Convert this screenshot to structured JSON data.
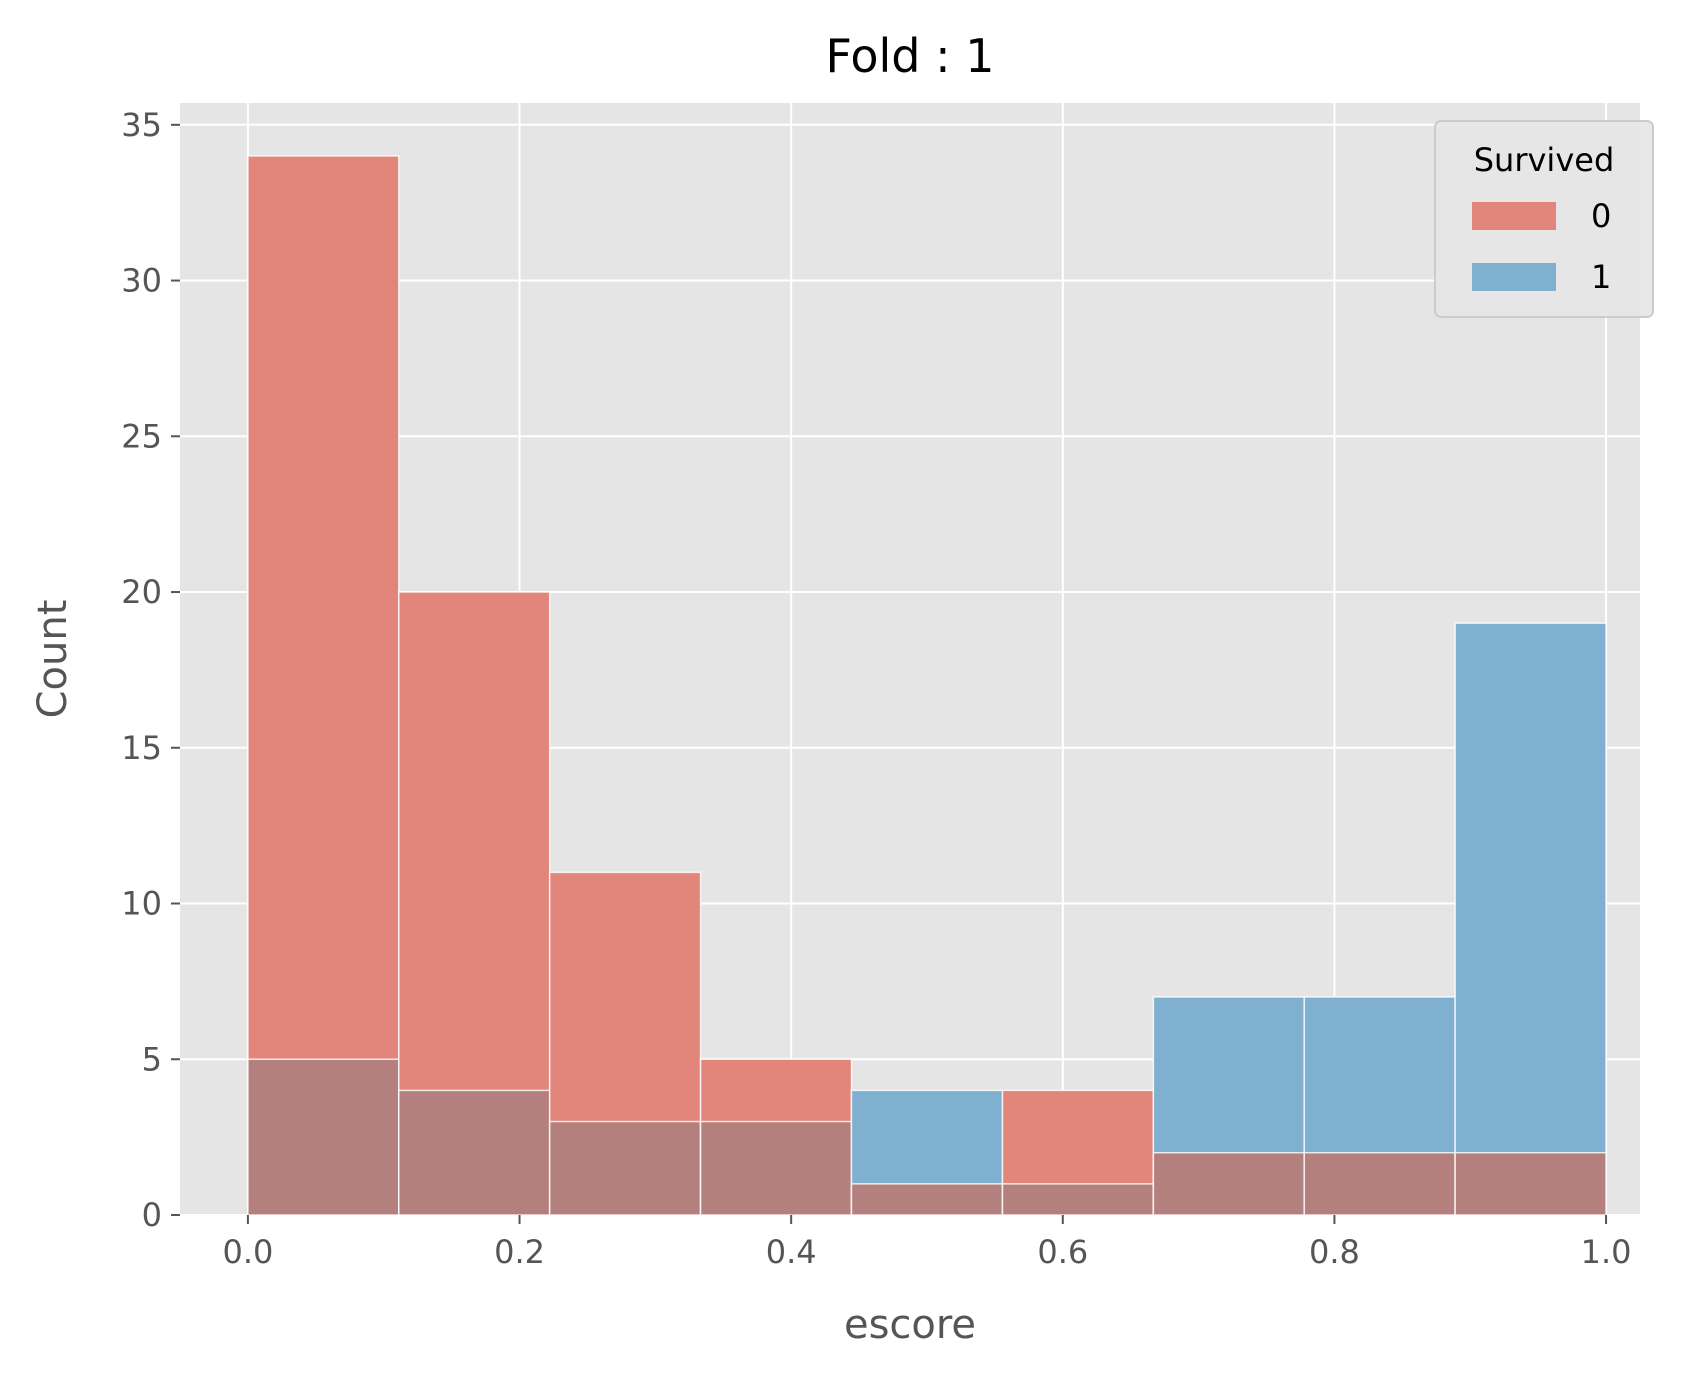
{
  "chart_data": {
    "type": "histogram",
    "title": "Fold : 1",
    "xlabel": "escore",
    "ylabel": "Count",
    "xlim": [
      -0.05,
      1.025
    ],
    "ylim": [
      0,
      35.7
    ],
    "grid": true,
    "x_ticks": [
      0.0,
      0.2,
      0.4,
      0.6,
      0.8,
      1.0
    ],
    "x_tick_labels": [
      "0.0",
      "0.2",
      "0.4",
      "0.6",
      "0.8",
      "1.0"
    ],
    "y_ticks": [
      0,
      5,
      10,
      15,
      20,
      25,
      30,
      35
    ],
    "y_tick_labels": [
      "0",
      "5",
      "10",
      "15",
      "20",
      "25",
      "30",
      "35"
    ],
    "bin_edges": [
      0.0,
      0.1111,
      0.2222,
      0.3333,
      0.4444,
      0.5556,
      0.6667,
      0.7778,
      0.8889,
      1.0
    ],
    "series": [
      {
        "name": "0",
        "color": "#e2857a",
        "values": [
          34,
          20,
          11,
          5,
          1,
          4,
          2,
          2,
          2
        ]
      },
      {
        "name": "1",
        "color": "#7fb0cf",
        "values": [
          5,
          4,
          3,
          3,
          4,
          1,
          7,
          7,
          19
        ]
      }
    ],
    "overlap_color": "#b4807e",
    "legend": {
      "title": "Survived",
      "position": "top-right"
    }
  }
}
